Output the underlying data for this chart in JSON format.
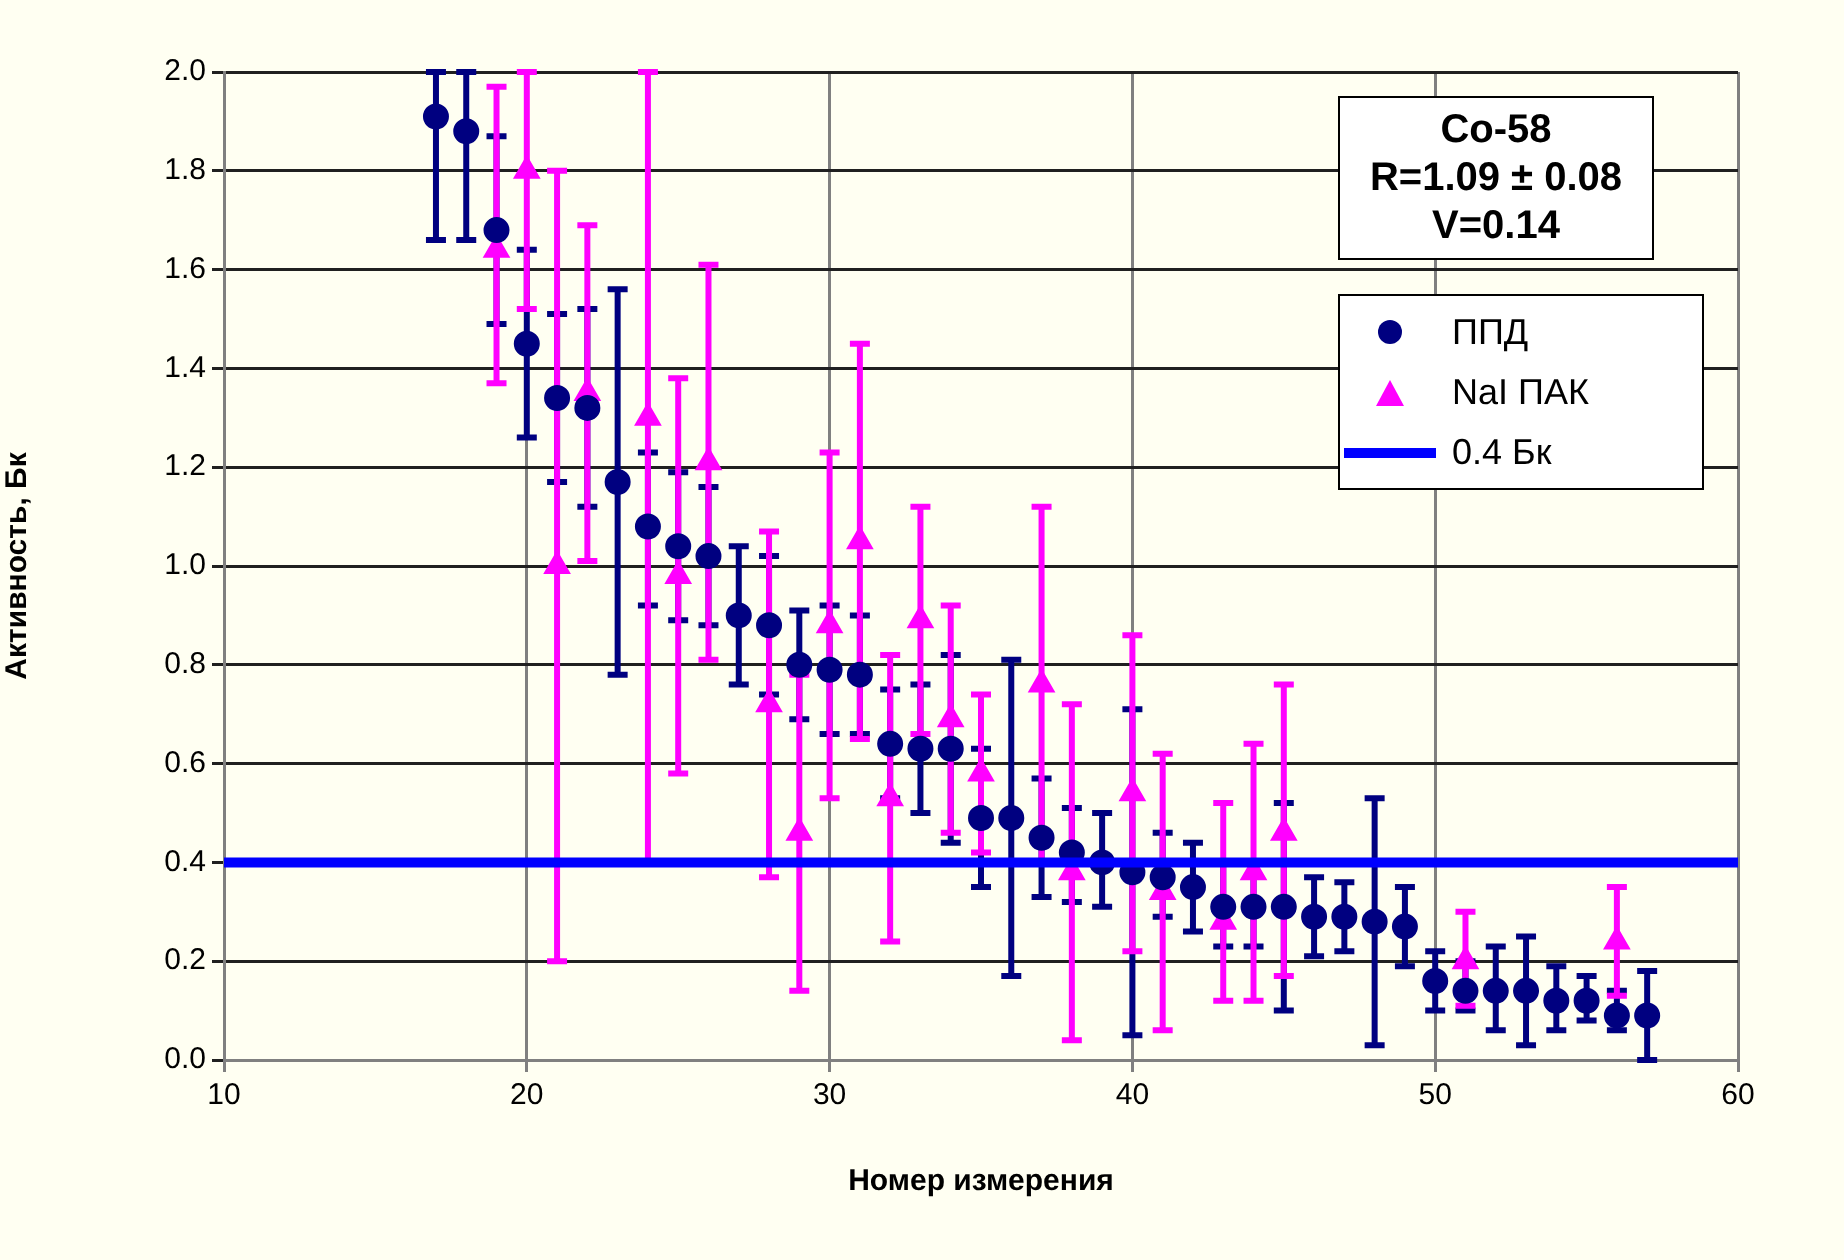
{
  "chart_data": {
    "type": "scatter",
    "xlabel": "Номер измерения",
    "ylabel": "Активность, Бк",
    "xlim": [
      10,
      60
    ],
    "xticks": [
      10,
      20,
      30,
      40,
      50,
      60
    ],
    "ylim": [
      0,
      2
    ],
    "yticks": [
      {
        "value": 0,
        "label": "0.0"
      },
      0.2,
      0.4,
      0.6,
      0.8,
      {
        "value": 1,
        "label": "1.0"
      },
      1.2,
      1.4,
      1.6,
      1.8,
      {
        "value": 2,
        "label": "2.0"
      }
    ],
    "grid": true,
    "legend": "top right",
    "annotations": [
      "Co-58\nR=1.09 ± 0.08\nV=0.14"
    ],
    "ref_lines": [
      {
        "axis": "y",
        "value": 0.4,
        "label": "0.4 Бк",
        "color": "#0000ff"
      }
    ],
    "series": [
      {
        "name": "ППД",
        "color": "#000080",
        "marker": "circle",
        "x": [
          17,
          18,
          19,
          20,
          21,
          22,
          23,
          24,
          25,
          26,
          27,
          28,
          29,
          30,
          31,
          32,
          33,
          34,
          35,
          36,
          37,
          38,
          39,
          40,
          41,
          42,
          43,
          44,
          45,
          46,
          47,
          48,
          49,
          50,
          51,
          52,
          53,
          54,
          55,
          56,
          57
        ],
        "values": [
          1.91,
          1.88,
          1.68,
          1.45,
          1.34,
          1.32,
          1.17,
          1.08,
          1.04,
          1.02,
          0.9,
          0.88,
          0.8,
          0.79,
          0.78,
          0.64,
          0.63,
          0.63,
          0.49,
          0.49,
          0.45,
          0.42,
          0.4,
          0.38,
          0.37,
          0.35,
          0.31,
          0.31,
          0.31,
          0.29,
          0.29,
          0.28,
          0.27,
          0.16,
          0.14,
          0.14,
          0.14,
          0.12,
          0.12,
          0.09,
          0.09
        ],
        "errors": [
          [
            1.66,
            2.0
          ],
          [
            1.66,
            2.0
          ],
          [
            1.49,
            1.87
          ],
          [
            1.26,
            1.64
          ],
          [
            1.17,
            1.51
          ],
          [
            1.12,
            1.52
          ],
          [
            0.78,
            1.56
          ],
          [
            0.92,
            1.23
          ],
          [
            0.89,
            1.19
          ],
          [
            0.88,
            1.16
          ],
          [
            0.76,
            1.04
          ],
          [
            0.74,
            1.02
          ],
          [
            0.69,
            0.91
          ],
          [
            0.66,
            0.92
          ],
          [
            0.66,
            0.9
          ],
          [
            0.53,
            0.75
          ],
          [
            0.5,
            0.76
          ],
          [
            0.44,
            0.82
          ],
          [
            0.35,
            0.63
          ],
          [
            0.17,
            0.81
          ],
          [
            0.33,
            0.57
          ],
          [
            0.32,
            0.51
          ],
          [
            0.31,
            0.5
          ],
          [
            0.05,
            0.71
          ],
          [
            0.29,
            0.46
          ],
          [
            0.26,
            0.44
          ],
          [
            0.23,
            0.4
          ],
          [
            0.23,
            0.4
          ],
          [
            0.1,
            0.52
          ],
          [
            0.21,
            0.37
          ],
          [
            0.22,
            0.36
          ],
          [
            0.03,
            0.53
          ],
          [
            0.19,
            0.35
          ],
          [
            0.1,
            0.22
          ],
          [
            0.1,
            0.2
          ],
          [
            0.06,
            0.23
          ],
          [
            0.03,
            0.25
          ],
          [
            0.06,
            0.19
          ],
          [
            0.08,
            0.17
          ],
          [
            0.06,
            0.14
          ],
          [
            0.0,
            0.18
          ]
        ]
      },
      {
        "name": "NaI ПАК",
        "color": "#ff00ff",
        "marker": "triangle",
        "x": [
          19,
          20,
          21,
          22,
          24,
          25,
          26,
          28,
          29,
          30,
          31,
          32,
          33,
          34,
          35,
          37,
          38,
          40,
          41,
          43,
          44,
          45,
          51,
          56
        ],
        "values": [
          1.64,
          1.8,
          1.0,
          1.35,
          1.3,
          0.98,
          1.21,
          0.72,
          0.46,
          0.88,
          1.05,
          0.53,
          0.89,
          0.69,
          0.58,
          0.76,
          0.38,
          0.54,
          0.34,
          0.28,
          0.38,
          0.46,
          0.2,
          0.24
        ],
        "errors": [
          [
            1.37,
            1.97
          ],
          [
            1.52,
            2.0
          ],
          [
            0.2,
            1.8
          ],
          [
            1.01,
            1.69
          ],
          [
            0.4,
            2.0
          ],
          [
            0.58,
            1.38
          ],
          [
            0.81,
            1.61
          ],
          [
            0.37,
            1.07
          ],
          [
            0.14,
            0.78
          ],
          [
            0.53,
            1.23
          ],
          [
            0.65,
            1.45
          ],
          [
            0.24,
            0.82
          ],
          [
            0.66,
            1.12
          ],
          [
            0.46,
            0.92
          ],
          [
            0.42,
            0.74
          ],
          [
            0.4,
            1.12
          ],
          [
            0.04,
            0.72
          ],
          [
            0.22,
            0.86
          ],
          [
            0.06,
            0.62
          ],
          [
            0.12,
            0.52
          ],
          [
            0.12,
            0.64
          ],
          [
            0.17,
            0.76
          ],
          [
            0.11,
            0.3
          ],
          [
            0.13,
            0.35
          ]
        ]
      }
    ]
  }
}
